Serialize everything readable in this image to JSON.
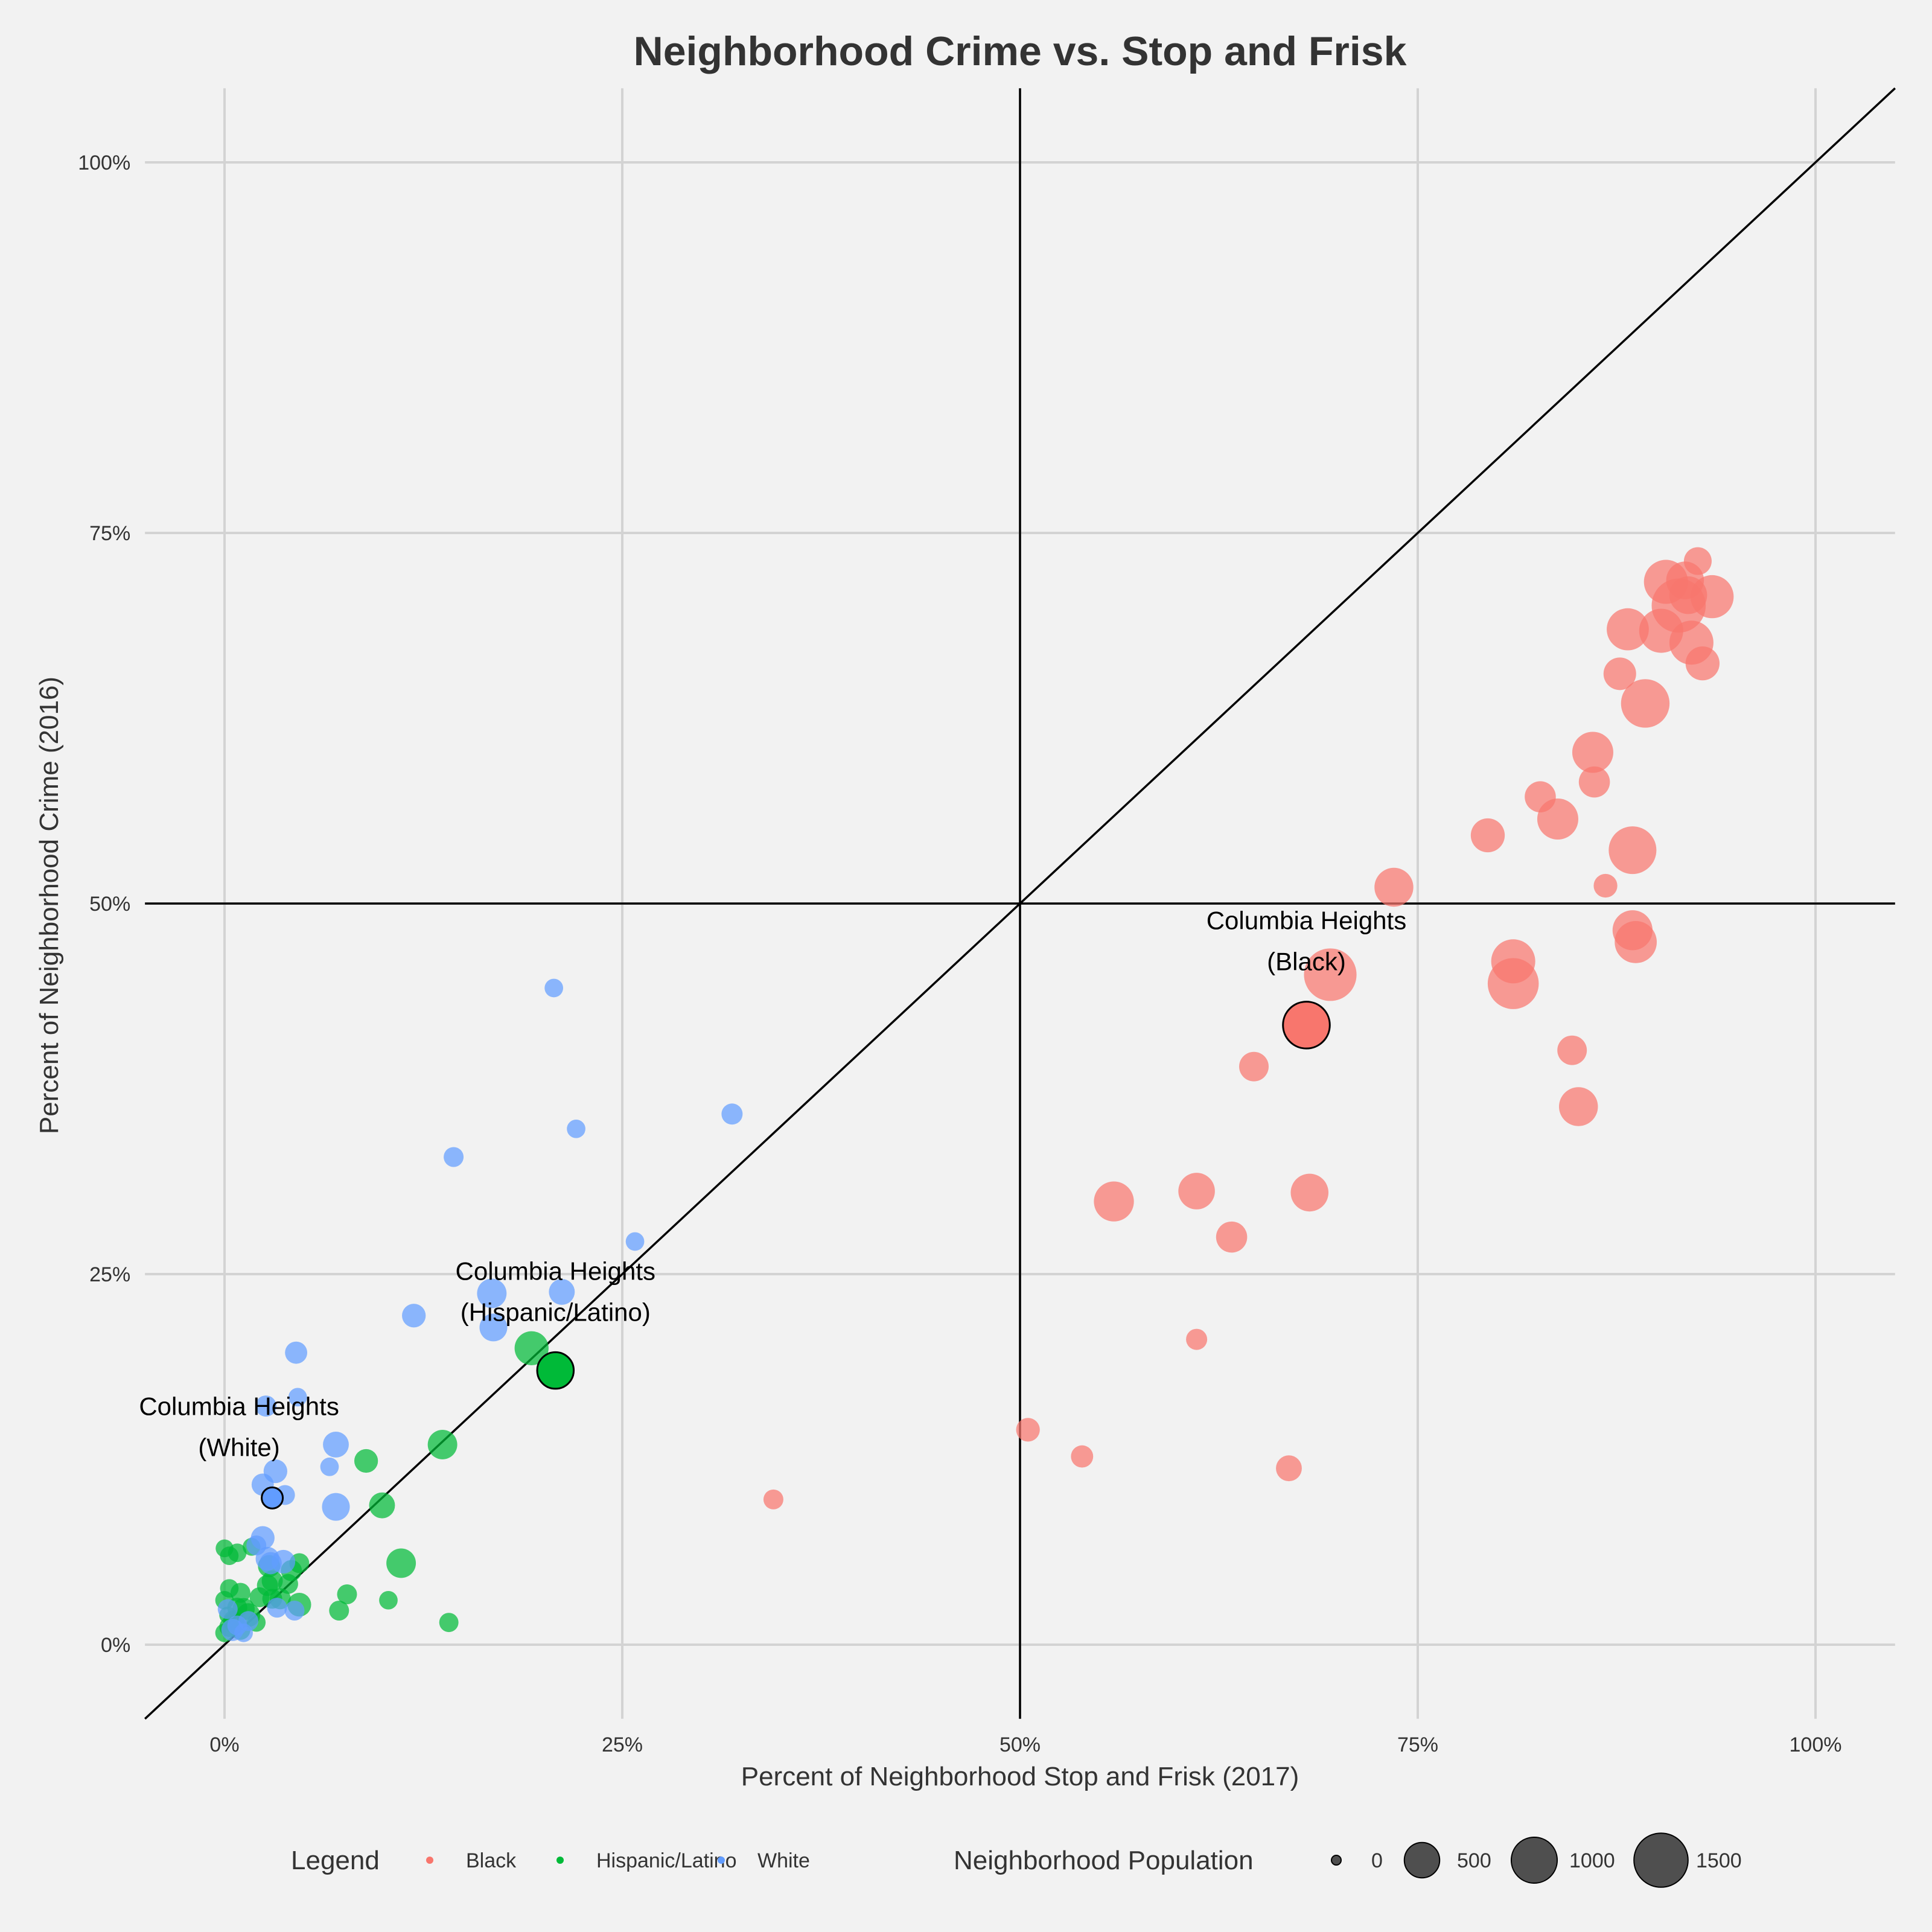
{
  "chart_data": {
    "type": "scatter",
    "title": "Neighborhood Crime vs. Stop and Frisk",
    "xlabel": "Percent of Neighborhood Stop and Frisk (2017)",
    "ylabel": "Percent of Neighborhood Crime (2016)",
    "xlim": [
      -0.05,
      1.05
    ],
    "ylim": [
      -0.05,
      1.05
    ],
    "x_ticks": [
      0,
      0.25,
      0.5,
      0.75,
      1.0
    ],
    "x_tick_labels": [
      "0%",
      "25%",
      "50%",
      "75%",
      "100%"
    ],
    "y_ticks": [
      0,
      0.25,
      0.5,
      0.75,
      1.0
    ],
    "y_tick_labels": [
      "0%",
      "25%",
      "50%",
      "75%",
      "100%"
    ],
    "grid": true,
    "reference_lines": {
      "vertical_x": 0.5,
      "horizontal_y": 0.5,
      "diagonal": "y = x"
    },
    "colors": {
      "Black": "#f8766d",
      "Hispanic/Latino": "#00ba38",
      "White": "#619cff"
    },
    "series": [
      {
        "name": "Black",
        "points": [
          [
            0.345,
            0.098,
            80
          ],
          [
            0.505,
            0.145,
            150
          ],
          [
            0.539,
            0.127,
            120
          ],
          [
            0.669,
            0.119,
            200
          ],
          [
            0.611,
            0.206,
            100
          ],
          [
            0.559,
            0.299,
            700
          ],
          [
            0.611,
            0.306,
            550
          ],
          [
            0.633,
            0.275,
            350
          ],
          [
            0.682,
            0.305,
            600
          ],
          [
            0.647,
            0.39,
            300
          ],
          [
            0.695,
            0.452,
            1400
          ],
          [
            0.735,
            0.511,
            650
          ],
          [
            0.794,
            0.546,
            450
          ],
          [
            0.81,
            0.461,
            900
          ],
          [
            0.81,
            0.446,
            1300
          ],
          [
            0.827,
            0.572,
            350
          ],
          [
            0.838,
            0.557,
            750
          ],
          [
            0.851,
            0.363,
            650
          ],
          [
            0.847,
            0.401,
            300
          ],
          [
            0.86,
            0.602,
            750
          ],
          [
            0.861,
            0.582,
            350
          ],
          [
            0.868,
            0.512,
            150
          ],
          [
            0.877,
            0.655,
            400
          ],
          [
            0.882,
            0.685,
            800
          ],
          [
            0.885,
            0.536,
            1100
          ],
          [
            0.885,
            0.482,
            700
          ],
          [
            0.887,
            0.474,
            800
          ],
          [
            0.893,
            0.635,
            1150
          ],
          [
            0.903,
            0.684,
            900
          ],
          [
            0.906,
            0.717,
            900
          ],
          [
            0.914,
            0.701,
            1500
          ],
          [
            0.918,
            0.718,
            600
          ],
          [
            0.92,
            0.708,
            600
          ],
          [
            0.922,
            0.676,
            900
          ],
          [
            0.926,
            0.731,
            250
          ],
          [
            0.929,
            0.662,
            450
          ],
          [
            0.935,
            0.707,
            850
          ]
        ]
      },
      {
        "name": "Hispanic/Latino",
        "points": [
          [
            0.0,
            0.065,
            50
          ],
          [
            0.003,
            0.06,
            60
          ],
          [
            0.008,
            0.062,
            60
          ],
          [
            0.017,
            0.066,
            50
          ],
          [
            0.0,
            0.03,
            60
          ],
          [
            0.002,
            0.02,
            40
          ],
          [
            0.003,
            0.038,
            60
          ],
          [
            0.005,
            0.017,
            50
          ],
          [
            0.008,
            0.025,
            80
          ],
          [
            0.01,
            0.035,
            80
          ],
          [
            0.012,
            0.024,
            120
          ],
          [
            0.015,
            0.02,
            150
          ],
          [
            0.0,
            0.008,
            60
          ],
          [
            0.003,
            0.012,
            80
          ],
          [
            0.006,
            0.015,
            100
          ],
          [
            0.01,
            0.01,
            80
          ],
          [
            0.02,
            0.015,
            60
          ],
          [
            0.022,
            0.032,
            80
          ],
          [
            0.027,
            0.04,
            100
          ],
          [
            0.028,
            0.053,
            120
          ],
          [
            0.03,
            0.043,
            100
          ],
          [
            0.03,
            0.031,
            80
          ],
          [
            0.035,
            0.031,
            100
          ],
          [
            0.04,
            0.041,
            80
          ],
          [
            0.042,
            0.05,
            100
          ],
          [
            0.047,
            0.055,
            80
          ],
          [
            0.047,
            0.027,
            150
          ],
          [
            0.072,
            0.023,
            80
          ],
          [
            0.077,
            0.034,
            80
          ],
          [
            0.089,
            0.124,
            150
          ],
          [
            0.099,
            0.094,
            200
          ],
          [
            0.103,
            0.03,
            60
          ],
          [
            0.111,
            0.055,
            300
          ],
          [
            0.137,
            0.135,
            300
          ],
          [
            0.141,
            0.015,
            70
          ],
          [
            0.193,
            0.2,
            450
          ],
          [
            0.208,
            0.185,
            550
          ]
        ]
      },
      {
        "name": "White",
        "points": [
          [
            0.002,
            0.024,
            80
          ],
          [
            0.005,
            0.01,
            120
          ],
          [
            0.008,
            0.013,
            80
          ],
          [
            0.012,
            0.008,
            60
          ],
          [
            0.015,
            0.016,
            80
          ],
          [
            0.02,
            0.067,
            80
          ],
          [
            0.024,
            0.072,
            150
          ],
          [
            0.024,
            0.108,
            120
          ],
          [
            0.026,
            0.161,
            100
          ],
          [
            0.027,
            0.058,
            150
          ],
          [
            0.029,
            0.055,
            120
          ],
          [
            0.032,
            0.117,
            150
          ],
          [
            0.033,
            0.025,
            80
          ],
          [
            0.037,
            0.056,
            150
          ],
          [
            0.038,
            0.101,
            80
          ],
          [
            0.044,
            0.023,
            80
          ],
          [
            0.045,
            0.197,
            120
          ],
          [
            0.046,
            0.167,
            60
          ],
          [
            0.066,
            0.12,
            60
          ],
          [
            0.07,
            0.093,
            250
          ],
          [
            0.07,
            0.135,
            200
          ],
          [
            0.119,
            0.222,
            150
          ],
          [
            0.144,
            0.329,
            80
          ],
          [
            0.168,
            0.237,
            300
          ],
          [
            0.169,
            0.214,
            250
          ],
          [
            0.207,
            0.443,
            60
          ],
          [
            0.212,
            0.238,
            200
          ],
          [
            0.221,
            0.348,
            60
          ],
          [
            0.258,
            0.272,
            60
          ],
          [
            0.319,
            0.358,
            100
          ],
          [
            0.03,
            0.099,
            100
          ]
        ]
      }
    ],
    "highlighted": [
      {
        "group": "Black",
        "x": 0.68,
        "y": 0.418,
        "population": 1050,
        "label_line1": "Columbia Heights",
        "label_line2": "(Black)"
      },
      {
        "group": "Hispanic/Latino",
        "x": 0.208,
        "y": 0.185,
        "population": 550,
        "label_line1": "Columbia Heights",
        "label_line2": "(Hispanic/Latino)"
      },
      {
        "group": "White",
        "x": 0.03,
        "y": 0.099,
        "population": 100,
        "label_line1": "Columbia Heights",
        "label_line2": "(White)"
      }
    ],
    "legend": {
      "placement": "bottom",
      "color_title": "Legend",
      "color_entries": [
        "Black",
        "Hispanic/Latino",
        "White"
      ],
      "size_title": "Neighborhood Population",
      "size_entries": [
        0,
        500,
        1000,
        1500
      ],
      "size_labels": [
        "0",
        "500",
        "1000",
        "1500"
      ]
    }
  }
}
